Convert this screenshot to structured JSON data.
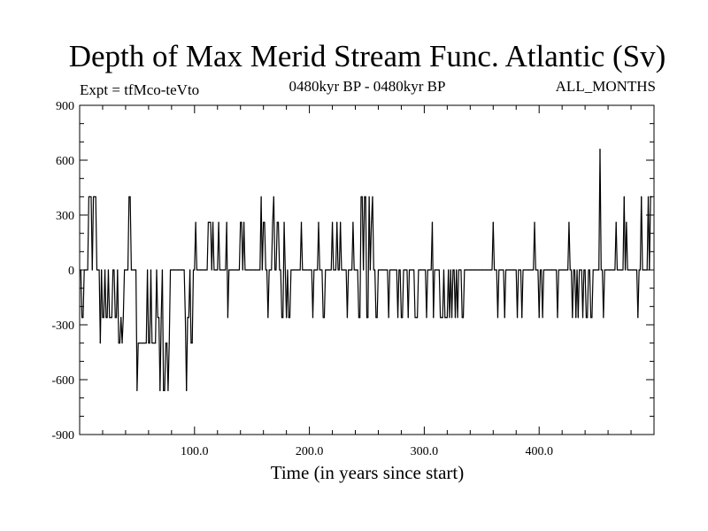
{
  "chart_data": {
    "type": "line",
    "title": "Depth of Max Merid Stream Func. Atlantic (Sv)",
    "experiment": "Expt = tfMco-teVto",
    "period": "0480kyr BP - 0480kyr BP",
    "months": "ALL_MONTHS",
    "xlabel": "Time (in years since start)",
    "ylabel": "",
    "xlim": [
      0,
      500
    ],
    "ylim": [
      -900,
      900
    ],
    "xticks": [
      100,
      200,
      300,
      400
    ],
    "xtick_labels": [
      "100.0",
      "200.0",
      "300.0",
      "400.0"
    ],
    "yticks": [
      900,
      600,
      300,
      0,
      -300,
      -600,
      -900
    ],
    "ytick_labels": [
      "900",
      "600",
      "300",
      "0",
      "-300",
      "-600",
      "-900"
    ],
    "series": [
      {
        "name": "Depth of Max Merid Stream Func.",
        "x_start": 1,
        "x_step": 1,
        "values": [
          0,
          -260,
          -260,
          0,
          0,
          0,
          0,
          400,
          400,
          400,
          0,
          400,
          400,
          400,
          0,
          0,
          0,
          -400,
          0,
          -260,
          -260,
          0,
          -260,
          -260,
          0,
          -260,
          -260,
          -260,
          0,
          0,
          -260,
          -260,
          0,
          -400,
          -400,
          -260,
          -400,
          -260,
          0,
          0,
          0,
          0,
          400,
          400,
          0,
          0,
          0,
          0,
          0,
          -660,
          -400,
          -400,
          -400,
          -400,
          -400,
          -400,
          -400,
          -400,
          0,
          -400,
          -400,
          0,
          -400,
          -400,
          -400,
          -400,
          0,
          -260,
          -260,
          -660,
          -260,
          0,
          -660,
          -660,
          -400,
          -400,
          -660,
          -400,
          0,
          0,
          0,
          0,
          0,
          0,
          0,
          0,
          0,
          0,
          0,
          0,
          0,
          -260,
          -660,
          -260,
          -260,
          0,
          -400,
          -400,
          0,
          0,
          260,
          0,
          0,
          0,
          0,
          0,
          0,
          0,
          0,
          0,
          0,
          260,
          260,
          260,
          0,
          260,
          0,
          0,
          0,
          0,
          260,
          0,
          0,
          0,
          0,
          0,
          0,
          260,
          -260,
          0,
          0,
          0,
          0,
          0,
          0,
          0,
          0,
          0,
          0,
          260,
          260,
          0,
          260,
          0,
          0,
          0,
          0,
          0,
          0,
          0,
          0,
          0,
          0,
          0,
          0,
          0,
          0,
          400,
          0,
          260,
          260,
          0,
          0,
          -260,
          0,
          0,
          0,
          260,
          400,
          0,
          0,
          260,
          260,
          0,
          0,
          -260,
          -260,
          260,
          0,
          -260,
          0,
          -260,
          -260,
          0,
          0,
          0,
          0,
          0,
          0,
          0,
          0,
          0,
          260,
          0,
          0,
          0,
          0,
          0,
          0,
          0,
          0,
          0,
          -260,
          0,
          0,
          0,
          0,
          260,
          0,
          0,
          0,
          -260,
          -260,
          0,
          0,
          0,
          0,
          0,
          0,
          260,
          0,
          0,
          0,
          260,
          0,
          0,
          260,
          0,
          0,
          0,
          0,
          0,
          -260,
          0,
          0,
          0,
          0,
          260,
          0,
          0,
          0,
          0,
          -260,
          -260,
          400,
          400,
          0,
          400,
          400,
          -260,
          -260,
          400,
          0,
          260,
          400,
          0,
          0,
          -260,
          -260,
          0,
          0,
          0,
          0,
          0,
          0,
          0,
          0,
          0,
          -260,
          0,
          0,
          0,
          0,
          0,
          0,
          0,
          -260,
          0,
          0,
          -260,
          -260,
          0,
          0,
          0,
          0,
          -260,
          0,
          0,
          0,
          0,
          0,
          -260,
          -260,
          -260,
          0,
          0,
          0,
          0,
          0,
          0,
          0,
          -260,
          0,
          0,
          0,
          0,
          260,
          -260,
          0,
          0,
          0,
          0,
          0,
          -260,
          -260,
          -260,
          0,
          -260,
          -260,
          -260,
          0,
          -260,
          0,
          -260,
          0,
          0,
          -260,
          0,
          -260,
          0,
          0,
          0,
          -260,
          -260,
          0,
          0,
          0,
          0,
          0,
          0,
          0,
          0,
          0,
          0,
          0,
          0,
          0,
          0,
          0,
          0,
          0,
          0,
          0,
          0,
          0,
          0,
          0,
          0,
          0,
          260,
          0,
          0,
          0,
          -260,
          0,
          0,
          0,
          0,
          0,
          -260,
          0,
          0,
          0,
          0,
          0,
          0,
          0,
          0,
          0,
          0,
          -260,
          0,
          0,
          0,
          -260,
          0,
          0,
          0,
          0,
          0,
          0,
          0,
          0,
          0,
          0,
          260,
          0,
          0,
          0,
          -260,
          0,
          0,
          -260,
          0,
          0,
          0,
          0,
          0,
          0,
          0,
          0,
          0,
          0,
          0,
          0,
          -260,
          0,
          0,
          0,
          0,
          0,
          0,
          0,
          0,
          0,
          260,
          0,
          0,
          -260,
          0,
          0,
          -260,
          0,
          -260,
          0,
          0,
          0,
          -260,
          0,
          0,
          -260,
          -260,
          0,
          0,
          -260,
          -260,
          0,
          0,
          0,
          0,
          0,
          0,
          660,
          0,
          0,
          -260,
          0,
          0,
          0,
          0,
          0,
          0,
          0,
          0,
          0,
          0,
          260,
          0,
          0,
          0,
          0,
          0,
          0,
          400,
          0,
          260,
          0,
          0,
          0,
          0,
          0,
          0,
          0,
          0,
          0,
          -260,
          0,
          0,
          400,
          0,
          0,
          0,
          0,
          0,
          400,
          0,
          400,
          400
        ]
      }
    ]
  }
}
